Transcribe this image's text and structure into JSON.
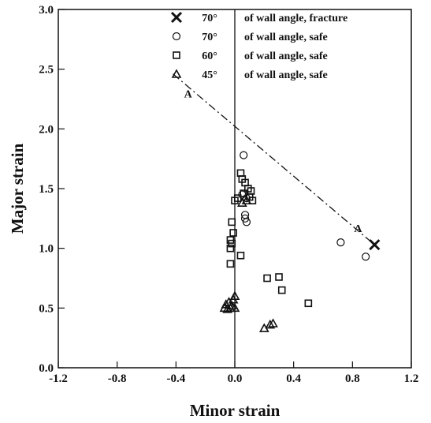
{
  "chart_data": {
    "type": "scatter",
    "xlabel": "Minor strain",
    "ylabel": "Major strain",
    "xlim": [
      -1.2,
      1.2
    ],
    "ylim": [
      0.0,
      3.0
    ],
    "x_ticks": [
      -1.2,
      -0.8,
      -0.4,
      0.0,
      0.4,
      0.8,
      1.2
    ],
    "x_tick_labels": [
      "-1.2",
      "-0.8",
      "-0.4",
      "0.0",
      "0.4",
      "0.8",
      "1.2"
    ],
    "y_ticks": [
      0.0,
      0.5,
      1.0,
      1.5,
      2.0,
      2.5,
      3.0
    ],
    "y_tick_labels": [
      "0.0",
      "0.5",
      "1.0",
      "1.5",
      "2.0",
      "2.5",
      "3.0"
    ],
    "legend_position": "top-right",
    "series": [
      {
        "name": "of wall angle, fracture",
        "angle": "70°",
        "marker": "cross",
        "points": [
          [
            0.95,
            1.03
          ]
        ]
      },
      {
        "name": "of wall angle, safe",
        "angle": "70°",
        "marker": "circle",
        "points": [
          [
            0.06,
            1.78
          ],
          [
            0.05,
            1.45
          ],
          [
            0.08,
            1.42
          ],
          [
            0.07,
            1.28
          ],
          [
            0.07,
            1.25
          ],
          [
            0.08,
            1.22
          ],
          [
            0.72,
            1.05
          ],
          [
            0.89,
            0.93
          ]
        ]
      },
      {
        "name": "of wall angle, safe",
        "angle": "60°",
        "marker": "square",
        "points": [
          [
            0.04,
            1.63
          ],
          [
            0.05,
            1.58
          ],
          [
            0.07,
            1.55
          ],
          [
            0.09,
            1.5
          ],
          [
            0.11,
            1.48
          ],
          [
            0.06,
            1.46
          ],
          [
            0.02,
            1.42
          ],
          [
            0.0,
            1.4
          ],
          [
            0.1,
            1.43
          ],
          [
            0.12,
            1.4
          ],
          [
            -0.02,
            1.22
          ],
          [
            -0.01,
            1.13
          ],
          [
            -0.03,
            1.07
          ],
          [
            -0.02,
            1.04
          ],
          [
            -0.03,
            1.0
          ],
          [
            0.04,
            0.94
          ],
          [
            -0.03,
            0.87
          ],
          [
            0.22,
            0.75
          ],
          [
            0.3,
            0.76
          ],
          [
            0.32,
            0.65
          ],
          [
            0.5,
            0.54
          ]
        ]
      },
      {
        "name": "of wall angle, safe",
        "angle": "45°",
        "marker": "triangle",
        "points": [
          [
            0.08,
            1.4
          ],
          [
            0.05,
            1.38
          ],
          [
            -0.07,
            0.5
          ],
          [
            -0.06,
            0.53
          ],
          [
            -0.04,
            0.55
          ],
          [
            -0.03,
            0.5
          ],
          [
            -0.02,
            0.52
          ],
          [
            -0.01,
            0.57
          ],
          [
            0.0,
            0.6
          ],
          [
            0.0,
            0.5
          ],
          [
            -0.05,
            0.49
          ],
          [
            0.2,
            0.33
          ],
          [
            0.24,
            0.36
          ],
          [
            0.26,
            0.37
          ]
        ]
      }
    ],
    "reference_line": {
      "label": "A",
      "points": [
        [
          -0.42,
          2.46
        ],
        [
          0.95,
          1.03
        ]
      ]
    }
  }
}
